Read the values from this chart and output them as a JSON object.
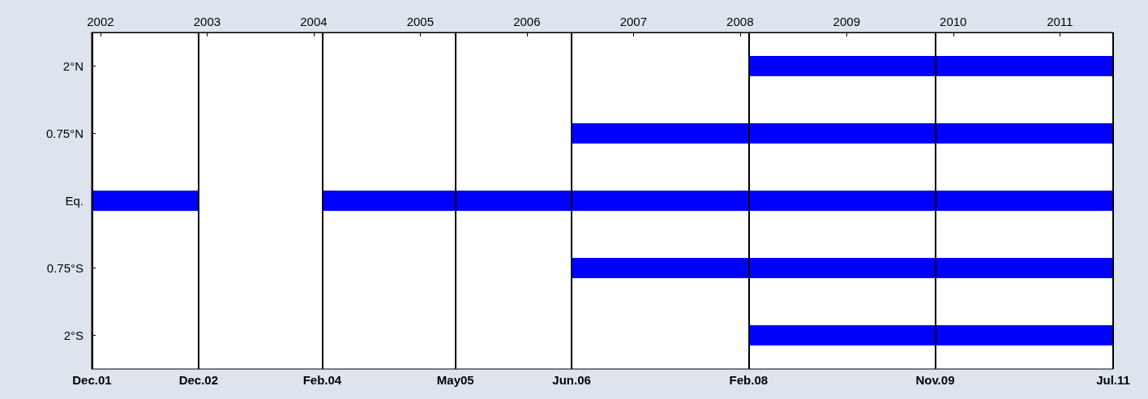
{
  "chart_data": {
    "type": "bar",
    "orientation": "horizontal",
    "categories": [
      "2°N",
      "0.75°N",
      "Eq.",
      "0.75°S",
      "2°S"
    ],
    "series": [
      {
        "color": "#0000ff",
        "base": [
          null,
          null,
          2001.917,
          null,
          null
        ],
        "values": [
          null,
          null,
          1.0,
          null,
          null
        ]
      },
      {
        "color": "#0000ff",
        "base": [
          2008.083,
          2006.417,
          2004.083,
          2006.417,
          2008.083
        ],
        "values": [
          3.417,
          5.083,
          7.417,
          5.083,
          3.417
        ]
      }
    ],
    "xlim": [
      2001.917,
      2011.5
    ],
    "xticks": [
      2002,
      2003,
      2004,
      2005,
      2006,
      2007,
      2008,
      2009,
      2010,
      2011
    ],
    "ref_lines": [
      {
        "axis": "x",
        "value": 2001.917,
        "label": "Dec.01"
      },
      {
        "axis": "x",
        "value": 2002.917,
        "label": "Dec.02"
      },
      {
        "axis": "x",
        "value": 2004.083,
        "label": "Feb.04"
      },
      {
        "axis": "x",
        "value": 2005.333,
        "label": "May05"
      },
      {
        "axis": "x",
        "value": 2006.417,
        "label": "Jun.06"
      },
      {
        "axis": "x",
        "value": 2008.083,
        "label": "Feb.08"
      },
      {
        "axis": "x",
        "value": 2009.833,
        "label": "Nov.09"
      },
      {
        "axis": "x",
        "value": 2011.5,
        "label": "Jul.11"
      }
    ]
  }
}
